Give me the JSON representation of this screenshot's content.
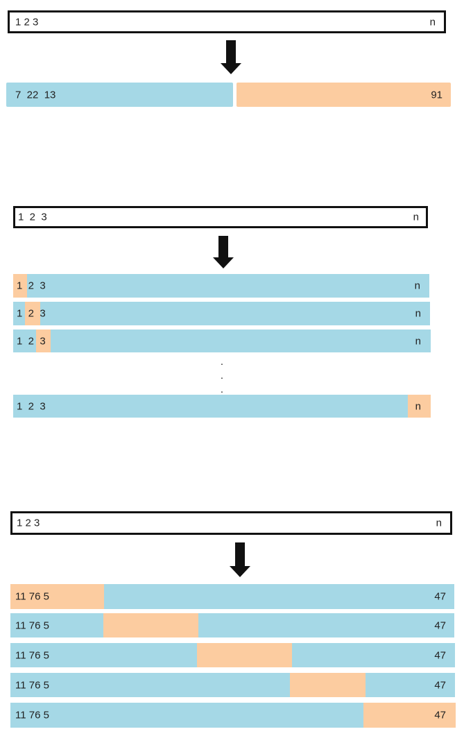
{
  "panel1": {
    "input": {
      "start": "1 2 3",
      "end": "n"
    },
    "left_part": {
      "label": "7  22  13"
    },
    "right_part": {
      "label": "91"
    }
  },
  "panel2": {
    "input": {
      "start": "1  2  3",
      "end": "n"
    },
    "rows": [
      {
        "start": "1  2  3",
        "end": "n"
      },
      {
        "start": "1  2  3",
        "end": "n"
      },
      {
        "start": "1  2  3",
        "end": "n"
      },
      {
        "start": "1  2  3",
        "end": "n"
      }
    ],
    "ellipsis": ".\n.\n."
  },
  "panel3": {
    "input": {
      "start": "1 2 3",
      "end": "n"
    },
    "rows": [
      {
        "start": "11 76 5",
        "end": "47"
      },
      {
        "start": "11 76 5",
        "end": "47"
      },
      {
        "start": "11 76 5",
        "end": "47"
      },
      {
        "start": "11 76 5",
        "end": "47"
      },
      {
        "start": "11 76 5",
        "end": "47"
      }
    ]
  },
  "colors": {
    "train": "#a5d8e6",
    "test": "#fccca0",
    "outline": "#111111"
  }
}
